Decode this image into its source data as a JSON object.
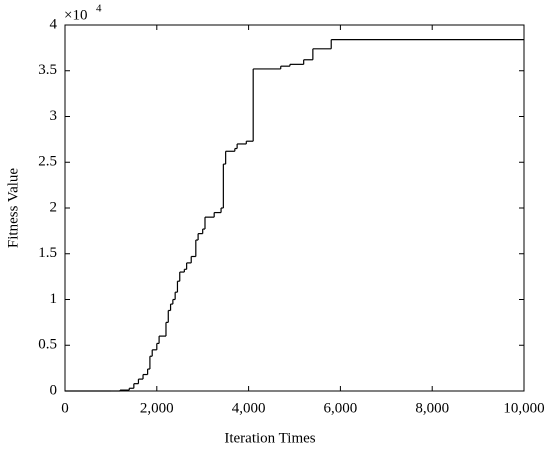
{
  "chart_data": {
    "type": "line",
    "step": "post",
    "xlabel": "Iteration Times",
    "ylabel": "Fitness Value",
    "y_multiplier": {
      "base": "×10",
      "exponent": "4"
    },
    "x": [
      0,
      1000,
      1200,
      1400,
      1500,
      1600,
      1700,
      1800,
      1850,
      1900,
      2000,
      2050,
      2200,
      2250,
      2300,
      2350,
      2400,
      2450,
      2500,
      2600,
      2650,
      2750,
      2850,
      2900,
      3000,
      3050,
      3250,
      3400,
      3450,
      3500,
      3700,
      3750,
      3950,
      4100,
      4700,
      4900,
      5200,
      5400,
      5800,
      10000
    ],
    "series": [
      {
        "color": "#000000",
        "values": [
          0,
          0,
          0.01,
          0.03,
          0.08,
          0.13,
          0.18,
          0.24,
          0.38,
          0.45,
          0.52,
          0.6,
          0.75,
          0.88,
          0.95,
          1.0,
          1.08,
          1.2,
          1.3,
          1.33,
          1.4,
          1.47,
          1.65,
          1.72,
          1.77,
          1.9,
          1.95,
          2.0,
          2.48,
          2.62,
          2.65,
          2.7,
          2.73,
          3.52,
          3.55,
          3.57,
          3.62,
          3.74,
          3.84,
          3.84
        ]
      }
    ],
    "xlim": [
      0,
      10000
    ],
    "xticks": [
      0,
      {
        "value": 2000,
        "label": "2,000"
      },
      {
        "value": 4000,
        "label": "4,000"
      },
      {
        "value": 6000,
        "label": "6,000"
      },
      {
        "value": 8000,
        "label": "8,000"
      },
      {
        "value": 10000,
        "label": "10,000"
      }
    ],
    "ylim": [
      0,
      4
    ],
    "yticks": [
      0,
      0.5,
      1,
      1.5,
      2,
      2.5,
      3,
      3.5,
      4
    ]
  }
}
